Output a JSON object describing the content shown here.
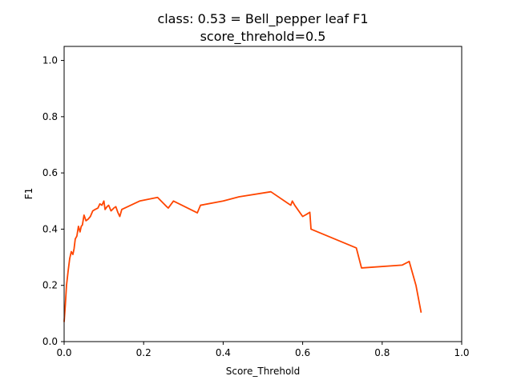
{
  "chart_data": {
    "type": "line",
    "title": "class: 0.53 = Bell_pepper leaf F1",
    "subtitle": "score_threhold=0.5",
    "xlabel": "Score_Threhold",
    "ylabel": "F1",
    "xlim": [
      0.0,
      1.0
    ],
    "ylim": [
      0.0,
      1.05
    ],
    "x_ticks": [
      0.0,
      0.2,
      0.4,
      0.6,
      0.8,
      1.0
    ],
    "x_tick_labels": [
      "0.0",
      "0.2",
      "0.4",
      "0.6",
      "0.8",
      "1.0"
    ],
    "y_ticks": [
      0.0,
      0.2,
      0.4,
      0.6,
      0.8,
      1.0
    ],
    "y_tick_labels": [
      "0.0",
      "0.2",
      "0.4",
      "0.6",
      "0.8",
      "1.0"
    ],
    "grid": false,
    "line_color": "#ff4500",
    "series": [
      {
        "x": [
          0.0,
          0.003,
          0.006,
          0.01,
          0.014,
          0.018,
          0.022,
          0.025,
          0.028,
          0.032,
          0.036,
          0.04,
          0.043,
          0.046,
          0.05,
          0.055,
          0.06,
          0.066,
          0.072,
          0.078,
          0.085,
          0.09,
          0.095,
          0.1,
          0.103,
          0.108,
          0.112,
          0.118,
          0.125,
          0.13,
          0.135,
          0.14,
          0.145,
          0.16,
          0.19,
          0.235,
          0.258,
          0.262,
          0.275,
          0.335,
          0.343,
          0.4,
          0.44,
          0.52,
          0.57,
          0.574,
          0.58,
          0.6,
          0.61,
          0.618,
          0.621,
          0.735,
          0.748,
          0.85,
          0.868,
          0.885,
          0.898
        ],
        "y": [
          0.07,
          0.13,
          0.2,
          0.25,
          0.295,
          0.32,
          0.31,
          0.33,
          0.365,
          0.375,
          0.41,
          0.39,
          0.41,
          0.415,
          0.45,
          0.43,
          0.435,
          0.445,
          0.465,
          0.47,
          0.475,
          0.49,
          0.485,
          0.5,
          0.47,
          0.48,
          0.485,
          0.465,
          0.475,
          0.48,
          0.46,
          0.445,
          0.47,
          0.48,
          0.5,
          0.513,
          0.48,
          0.475,
          0.5,
          0.458,
          0.485,
          0.5,
          0.515,
          0.533,
          0.485,
          0.5,
          0.485,
          0.445,
          0.453,
          0.46,
          0.4,
          0.333,
          0.262,
          0.272,
          0.285,
          0.2,
          0.103
        ]
      }
    ]
  }
}
